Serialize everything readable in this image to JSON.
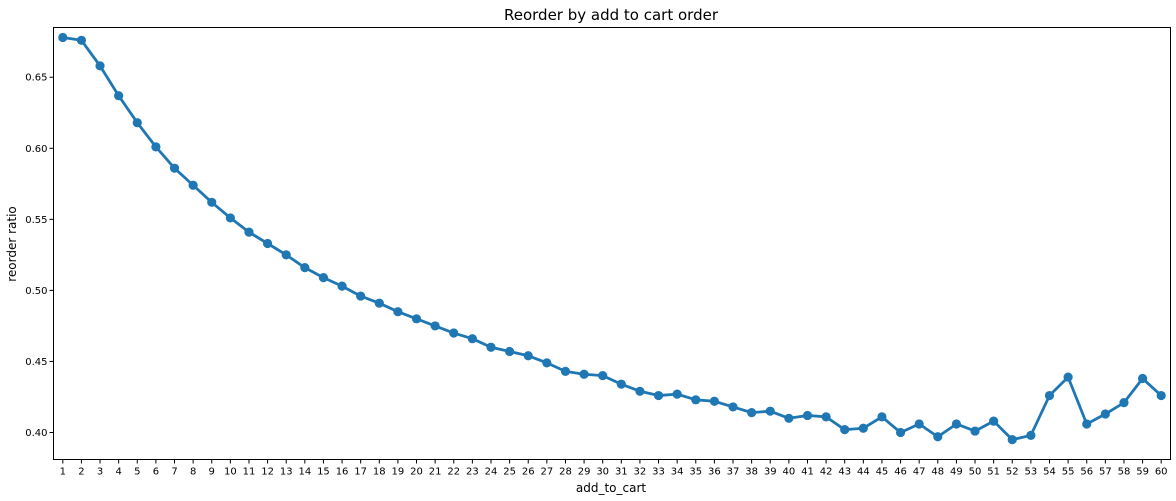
{
  "chart_data": {
    "type": "line",
    "title": "Reorder by add to cart order",
    "xlabel": "add_to_cart",
    "ylabel": "reorder ratio",
    "x": [
      1,
      2,
      3,
      4,
      5,
      6,
      7,
      8,
      9,
      10,
      11,
      12,
      13,
      14,
      15,
      16,
      17,
      18,
      19,
      20,
      21,
      22,
      23,
      24,
      25,
      26,
      27,
      28,
      29,
      30,
      31,
      32,
      33,
      34,
      35,
      36,
      37,
      38,
      39,
      40,
      41,
      42,
      43,
      44,
      45,
      46,
      47,
      48,
      49,
      50,
      51,
      52,
      53,
      54,
      55,
      56,
      57,
      58,
      59,
      60
    ],
    "series": [
      {
        "values": [
          0.678,
          0.676,
          0.658,
          0.637,
          0.618,
          0.601,
          0.586,
          0.574,
          0.562,
          0.551,
          0.541,
          0.533,
          0.525,
          0.516,
          0.509,
          0.503,
          0.496,
          0.491,
          0.485,
          0.48,
          0.475,
          0.47,
          0.466,
          0.46,
          0.457,
          0.454,
          0.449,
          0.443,
          0.441,
          0.44,
          0.434,
          0.429,
          0.426,
          0.427,
          0.423,
          0.422,
          0.418,
          0.414,
          0.415,
          0.41,
          0.412,
          0.411,
          0.402,
          0.403,
          0.411,
          0.4,
          0.406,
          0.397,
          0.406,
          0.401,
          0.408,
          0.395,
          0.398,
          0.426,
          0.439,
          0.406,
          0.413,
          0.421,
          0.438,
          0.426
        ]
      }
    ],
    "yticks": [
      0.4,
      0.45,
      0.5,
      0.55,
      0.6,
      0.65
    ],
    "ytick_labels": [
      "0.40",
      "0.45",
      "0.50",
      "0.55",
      "0.60",
      "0.65"
    ],
    "ylim": [
      0.381,
      0.685
    ],
    "grid": false,
    "color": "#1f77b4"
  }
}
